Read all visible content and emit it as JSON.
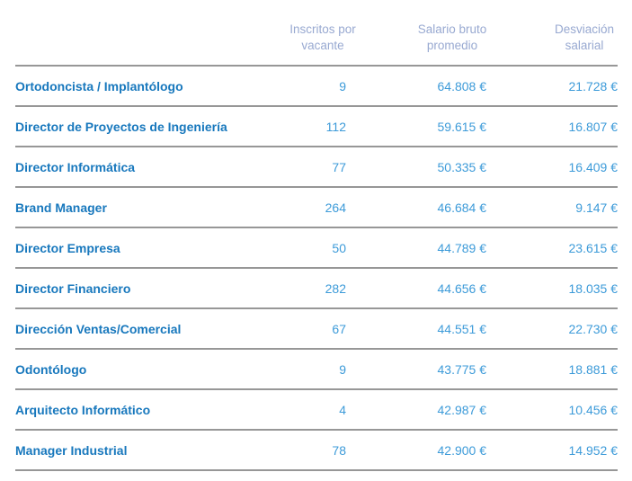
{
  "page": {
    "background": "#ffffff"
  },
  "colors": {
    "header_text": "#98a9d1",
    "job_title_text": "#1878bd",
    "value_text": "#3d9bd9",
    "divider": "#979797"
  },
  "chart_data": {
    "type": "table",
    "columns": [
      "",
      "Inscritos por vacante",
      "Salario bruto promedio",
      "Desviación salarial"
    ],
    "rows": [
      {
        "title": "Ortodoncista / Implantólogo",
        "inscritos": "9",
        "salario": "64.808 €",
        "desviacion": "21.728 €"
      },
      {
        "title": "Director de Proyectos de Ingeniería",
        "inscritos": "112",
        "salario": "59.615 €",
        "desviacion": "16.807 €"
      },
      {
        "title": "Director Informática",
        "inscritos": "77",
        "salario": "50.335 €",
        "desviacion": "16.409 €"
      },
      {
        "title": "Brand Manager",
        "inscritos": "264",
        "salario": "46.684 €",
        "desviacion": "9.147 €"
      },
      {
        "title": "Director Empresa",
        "inscritos": "50",
        "salario": "44.789 €",
        "desviacion": "23.615 €"
      },
      {
        "title": "Director Financiero",
        "inscritos": "282",
        "salario": "44.656 €",
        "desviacion": "18.035 €"
      },
      {
        "title": "Dirección Ventas/Comercial",
        "inscritos": "67",
        "salario": "44.551 €",
        "desviacion": "22.730 €"
      },
      {
        "title": "Odontólogo",
        "inscritos": "9",
        "salario": "43.775 €",
        "desviacion": "18.881 €"
      },
      {
        "title": "Arquitecto Informático",
        "inscritos": "4",
        "salario": "42.987 €",
        "desviacion": "10.456 €"
      },
      {
        "title": "Manager Industrial",
        "inscritos": "78",
        "salario": "42.900 €",
        "desviacion": "14.952 €"
      }
    ]
  }
}
